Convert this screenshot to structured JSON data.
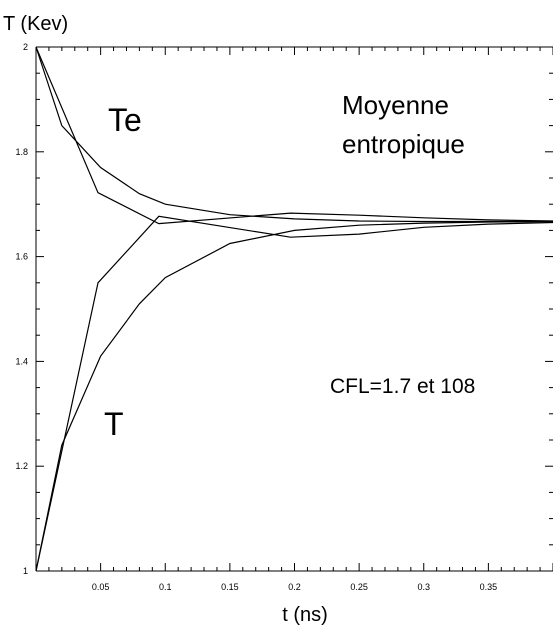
{
  "chart_data": {
    "type": "line",
    "ylabel": "T (Kev)",
    "xlabel": "t (ns)",
    "xlim": [
      0,
      0.4
    ],
    "ylim": [
      1,
      2
    ],
    "x_ticks": [
      "0.05",
      "0.1",
      "0.15",
      "0.2",
      "0.25",
      "0.3",
      "0.35"
    ],
    "y_ticks": [
      "1",
      "1.2",
      "1.4",
      "1.6",
      "1.8",
      "2"
    ],
    "grid": false,
    "annotations": {
      "te_label": "Te",
      "t_label": "T",
      "method_line1": "Moyenne",
      "method_line2": "entropique",
      "cfl": "CFL=1.7 et 108"
    },
    "series": [
      {
        "x": [
          0,
          0.02,
          0.05,
          0.08,
          0.1,
          0.15,
          0.2,
          0.25,
          0.3,
          0.35,
          0.4
        ],
        "values": [
          2.0,
          1.85,
          1.77,
          1.72,
          1.7,
          1.68,
          1.672,
          1.668,
          1.667,
          1.667,
          1.667
        ]
      },
      {
        "x": [
          0,
          0.048,
          0.095,
          0.197,
          0.25,
          0.3,
          0.35,
          0.4
        ],
        "values": [
          2.0,
          1.722,
          1.663,
          1.683,
          1.679,
          1.674,
          1.67,
          1.668
        ]
      },
      {
        "x": [
          0,
          0.02,
          0.05,
          0.08,
          0.1,
          0.15,
          0.2,
          0.25,
          0.3,
          0.35,
          0.4
        ],
        "values": [
          1.0,
          1.24,
          1.41,
          1.51,
          1.56,
          1.625,
          1.65,
          1.66,
          1.664,
          1.666,
          1.667
        ]
      },
      {
        "x": [
          0,
          0.048,
          0.095,
          0.197,
          0.25,
          0.3,
          0.35,
          0.4
        ],
        "values": [
          1.0,
          1.55,
          1.677,
          1.637,
          1.643,
          1.656,
          1.662,
          1.665
        ]
      }
    ]
  }
}
